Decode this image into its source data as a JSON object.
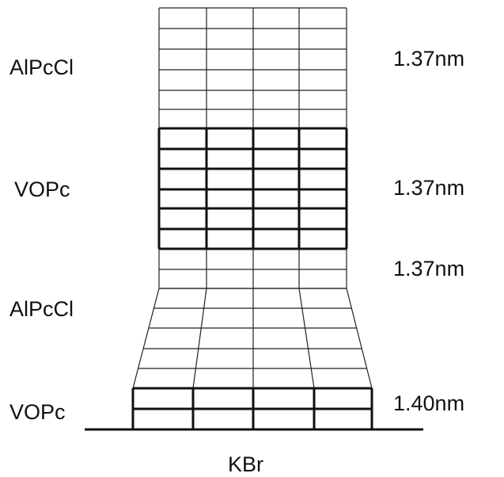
{
  "left_labels": [
    "AlPcCl",
    "VOPc",
    "AlPcCl",
    "VOPc"
  ],
  "right_labels": [
    "1.37nm",
    "1.37nm",
    "1.37nm",
    "1.40nm"
  ],
  "substrate": "KBr"
}
